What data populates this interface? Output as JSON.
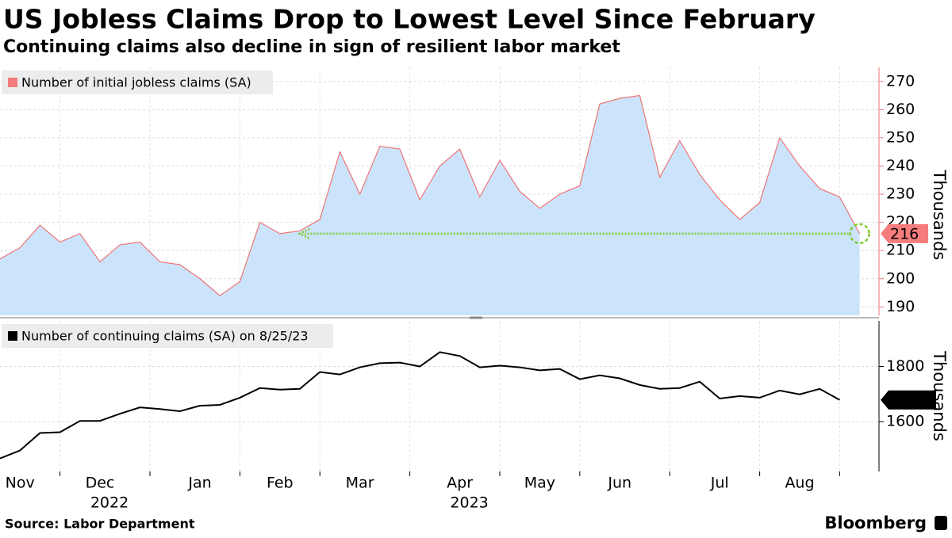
{
  "title": "US Jobless Claims Drop to Lowest Level Since February",
  "subtitle": "Continuing claims also decline in sign of resilient labor market",
  "source": "Source: Labor Department",
  "brand": "Bloomberg",
  "chart_data": [
    {
      "type": "area",
      "categories": [
        null,
        "Nov",
        null,
        null,
        null,
        "Dec",
        null,
        null,
        null,
        null,
        "Jan",
        null,
        null,
        null,
        "Feb",
        null,
        null,
        null,
        "Mar",
        null,
        null,
        null,
        null,
        "Apr",
        null,
        null,
        null,
        "May",
        null,
        null,
        null,
        "Jun",
        null,
        null,
        null,
        null,
        "Jul",
        null,
        null,
        null,
        "Aug",
        null,
        null,
        null
      ],
      "year_labels": [
        null,
        null,
        null,
        null,
        null,
        "2022",
        null,
        null,
        null,
        null,
        null,
        null,
        null,
        null,
        null,
        null,
        null,
        null,
        null,
        null,
        null,
        null,
        null,
        "2023",
        null,
        null,
        null,
        null,
        null,
        null,
        null,
        null,
        null,
        null,
        null,
        null,
        null,
        null,
        null,
        null,
        null,
        null,
        null,
        null
      ],
      "series": [
        {
          "name": "Number of initial jobless claims (SA)",
          "color": "#f07575",
          "fill": "#cce4fb",
          "values": [
            207,
            211,
            219,
            213,
            216,
            206,
            212,
            213,
            206,
            205,
            200,
            194,
            199,
            220,
            216,
            217,
            221,
            245,
            230,
            247,
            246,
            228,
            240,
            246,
            229,
            242,
            231,
            225,
            230,
            233,
            262,
            264,
            265,
            236,
            249,
            237,
            228,
            221,
            227,
            250,
            240,
            232,
            229,
            216
          ]
        }
      ],
      "ylabel": "Thousands",
      "ylim": [
        187,
        275
      ],
      "yticks": [
        190,
        200,
        210,
        220,
        230,
        240,
        250,
        260,
        270
      ],
      "grid": true
    },
    {
      "type": "line",
      "series": [
        {
          "name": "Number of continuing claims (SA) on 8/25/23",
          "color": "#000000",
          "values": [
            1467,
            1496,
            1559,
            1562,
            1603,
            1603,
            1629,
            1652,
            1646,
            1638,
            1658,
            1661,
            1687,
            1722,
            1716,
            1719,
            1780,
            1771,
            1797,
            1812,
            1814,
            1800,
            1852,
            1838,
            1797,
            1803,
            1797,
            1786,
            1791,
            1754,
            1768,
            1757,
            1733,
            1719,
            1722,
            1745,
            1684,
            1693,
            1687,
            1713,
            1699,
            1719,
            1679,
            null
          ]
        }
      ],
      "ylabel": "Thousands",
      "ylim": [
        1420,
        1965
      ],
      "yticks": [
        1600,
        1800
      ],
      "grid": true
    }
  ]
}
